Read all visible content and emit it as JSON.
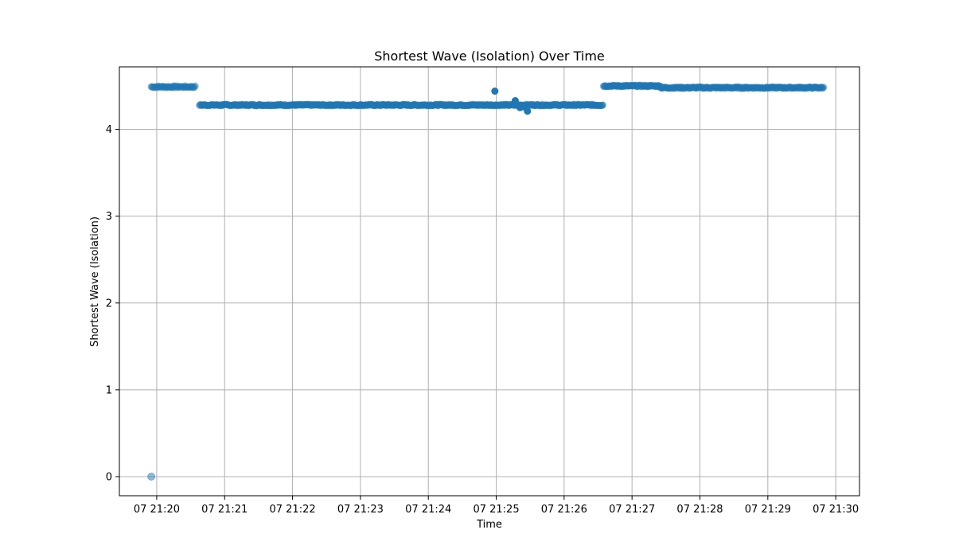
{
  "chart_data": {
    "type": "scatter",
    "title": "Shortest Wave (Isolation) Over Time",
    "xlabel": "Time",
    "ylabel": "Shortest Wave (Isolation)",
    "grid": true,
    "color": "#1f77b4",
    "x_ticks": [
      "07 21:20",
      "07 21:21",
      "07 21:22",
      "07 21:23",
      "07 21:24",
      "07 21:25",
      "07 21:26",
      "07 21:27",
      "07 21:28",
      "07 21:29",
      "07 21:30"
    ],
    "x_tick_minutes": [
      20,
      21,
      22,
      23,
      24,
      25,
      26,
      27,
      28,
      29,
      30
    ],
    "xlim_minutes": [
      19.45,
      30.35
    ],
    "ylim": [
      -0.22,
      4.72
    ],
    "y_ticks": [
      0,
      1,
      2,
      3,
      4
    ],
    "outlier_point": {
      "x_minute": 19.92,
      "y": 0.0,
      "alpha": 0.5
    },
    "segments": [
      {
        "x_start_minute": 19.92,
        "x_end_minute": 20.57,
        "y": 4.49,
        "step_minute": 0.015,
        "jitter": 0.01
      },
      {
        "x_start_minute": 20.63,
        "x_end_minute": 26.58,
        "y": 4.28,
        "step_minute": 0.012,
        "jitter": 0.008
      },
      {
        "x_start_minute": 26.58,
        "x_end_minute": 27.42,
        "y": 4.5,
        "step_minute": 0.012,
        "jitter": 0.008
      },
      {
        "x_start_minute": 27.42,
        "x_end_minute": 29.82,
        "y": 4.48,
        "step_minute": 0.012,
        "jitter": 0.008
      }
    ],
    "special_points": [
      {
        "x_minute": 24.98,
        "y": 4.44
      },
      {
        "x_minute": 25.28,
        "y": 4.33
      },
      {
        "x_minute": 25.46,
        "y": 4.21
      },
      {
        "x_minute": 25.4,
        "y": 4.26
      },
      {
        "x_minute": 25.35,
        "y": 4.25
      }
    ]
  }
}
